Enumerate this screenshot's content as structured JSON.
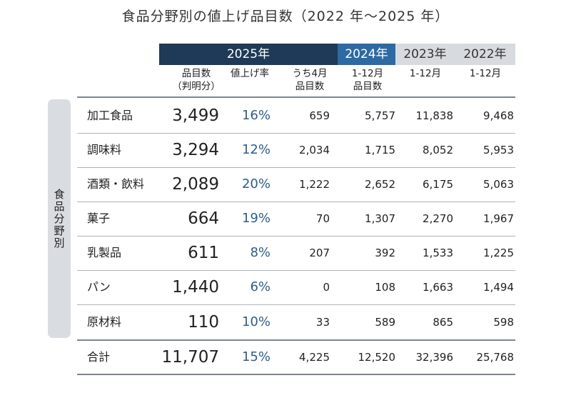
{
  "title": "食品分野別の値上げ品目数（2022 年～2025 年）",
  "year_headers": [
    "2025年",
    "2024年",
    "2023年",
    "2022年"
  ],
  "subheaders": [
    [
      "品目数",
      "（判明分）"
    ],
    [
      "値上げ率"
    ],
    [
      "うち4月",
      "品目数"
    ],
    [
      "1-12月",
      "品目数"
    ],
    [
      "1-12月"
    ],
    [
      "1-12月"
    ]
  ],
  "side_label": "食品分野別",
  "rows": [
    {
      "name": "加工食品",
      "items": "3,499",
      "rate": "16%",
      "april": "659",
      "y2024": "5,757",
      "y2023": "11,838",
      "y2022": "9,468"
    },
    {
      "name": "調味料",
      "items": "3,294",
      "rate": "12%",
      "april": "2,034",
      "y2024": "1,715",
      "y2023": "8,052",
      "y2022": "5,953"
    },
    {
      "name": "酒類・飲料",
      "items": "2,089",
      "rate": "20%",
      "april": "1,222",
      "y2024": "2,652",
      "y2023": "6,175",
      "y2022": "5,063"
    },
    {
      "name": "菓子",
      "items": "664",
      "rate": "19%",
      "april": "70",
      "y2024": "1,307",
      "y2023": "2,270",
      "y2022": "1,967"
    },
    {
      "name": "乳製品",
      "items": "611",
      "rate": "8%",
      "april": "207",
      "y2024": "392",
      "y2023": "1,533",
      "y2022": "1,225"
    },
    {
      "name": "パン",
      "items": "1,440",
      "rate": "6%",
      "april": "0",
      "y2024": "108",
      "y2023": "1,663",
      "y2022": "1,494"
    },
    {
      "name": "原材料",
      "items": "110",
      "rate": "10%",
      "april": "33",
      "y2024": "589",
      "y2023": "865",
      "y2022": "598"
    }
  ],
  "total": {
    "name": "合計",
    "items": "11,707",
    "rate": "15%",
    "april": "4,225",
    "y2024": "12,520",
    "y2023": "32,396",
    "y2022": "25,768"
  },
  "colors": {
    "header_2025": "#1e3a56",
    "header_2024": "#2d6aa3",
    "header_gray": "#d7dbe0",
    "rate_text": "#2d5d8a",
    "side_band": "#d9dde2"
  }
}
